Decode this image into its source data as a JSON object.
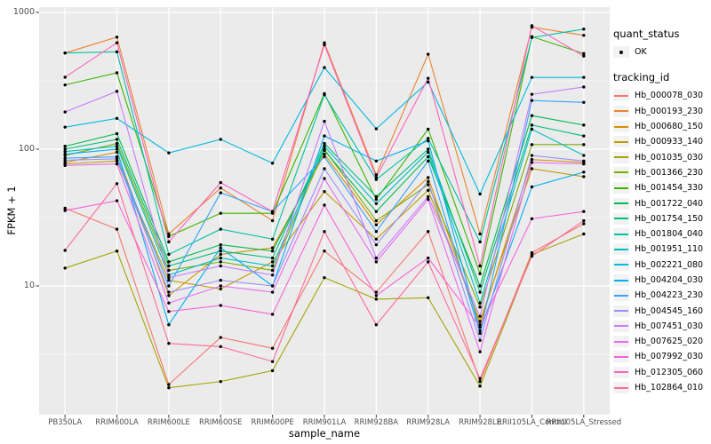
{
  "figure": {
    "y_axis_title": "FPKM + 1",
    "x_axis_title": "sample_name",
    "legend": {
      "quant_title": "quant_status",
      "quant_items": [
        {
          "label": "OK",
          "symbol": "point",
          "color": "#000000"
        }
      ],
      "tracking_title": "tracking_id"
    },
    "colors": {
      "panel_bg": "#EBEBEB",
      "grid_major": "#FFFFFF",
      "grid_minor": "#FFFFFF",
      "axis_text": "#4D4D4D",
      "tick_mark": "#333333",
      "point": "#000000",
      "legend_key_bg": "#F2F2F2"
    }
  },
  "chart_data": {
    "type": "line",
    "title": "",
    "xlabel": "sample_name",
    "ylabel": "FPKM + 1",
    "y_scale": "log10",
    "ylim": [
      1.1,
      1100
    ],
    "y_major_ticks": [
      1000,
      100,
      10
    ],
    "y_major_tick_labels": [
      "1000",
      "100",
      "10"
    ],
    "y_minor_ticks": [
      316.2,
      31.62,
      3.162
    ],
    "grid": true,
    "legend_position": "right",
    "point_symbol": "filled-circle",
    "point_color": "#000000",
    "quant_status": "OK",
    "categories": [
      "PB350LA",
      "RRIM600LA",
      "RRIM600LE",
      "RRIM600SE",
      "RRIM600PE",
      "RRIM901LA",
      "RRIM928BA",
      "RRIM928LA",
      "RRIM928LE",
      "RRII105LA_Control",
      "RRII105LA_Stressed"
    ],
    "series": [
      {
        "name": "Hb_000078_030",
        "color": "#F8766D",
        "values": [
          37,
          26,
          1.9,
          4.2,
          3.5,
          18,
          9,
          25,
          2.0,
          17.5,
          28.5
        ]
      },
      {
        "name": "Hb_000193_230",
        "color": "#EA8331",
        "values": [
          505,
          660,
          24,
          52,
          30,
          600,
          65,
          495,
          24,
          780,
          680
        ]
      },
      {
        "name": "Hb_000680_150",
        "color": "#D89000",
        "values": [
          80,
          95,
          8.5,
          17,
          19,
          92,
          28,
          62,
          5.2,
          84,
          80
        ]
      },
      {
        "name": "Hb_000933_140",
        "color": "#C09B00",
        "values": [
          78,
          82,
          11,
          9.5,
          15,
          49,
          22,
          50,
          5.5,
          72,
          63
        ]
      },
      {
        "name": "Hb_001035_030",
        "color": "#A3A500",
        "values": [
          13.5,
          18,
          1.8,
          2.0,
          2.4,
          11.5,
          8,
          8.2,
          1.85,
          17,
          24
        ]
      },
      {
        "name": "Hb_001366_230",
        "color": "#7CAE00",
        "values": [
          90,
          110,
          13,
          15,
          13,
          100,
          30,
          55,
          7,
          108,
          108
        ]
      },
      {
        "name": "Hb_001454_330",
        "color": "#39B600",
        "values": [
          295,
          362,
          23,
          34,
          34,
          255,
          43,
          140,
          12.3,
          665,
          500
        ]
      },
      {
        "name": "Hb_001722_040",
        "color": "#00BB4E",
        "values": [
          105,
          130,
          15,
          20,
          18,
          98,
          35,
          88,
          10,
          176,
          150
        ]
      },
      {
        "name": "Hb_001754_150",
        "color": "#00BF7D",
        "values": [
          100,
          118,
          14,
          18,
          16,
          110,
          45,
          100,
          9,
          150,
          125
        ]
      },
      {
        "name": "Hb_001804_040",
        "color": "#00C1A3",
        "values": [
          505,
          515,
          17,
          26,
          22,
          250,
          60,
          120,
          21,
          655,
          755
        ]
      },
      {
        "name": "Hb_001951_110",
        "color": "#00BFC4",
        "values": [
          96,
          105,
          12,
          16,
          14,
          105,
          40,
          95,
          7.5,
          140,
          90
        ]
      },
      {
        "name": "Hb_002221_080",
        "color": "#00BAE0",
        "values": [
          145,
          168,
          94,
          118,
          79,
          395,
          141,
          310,
          47,
          335,
          335
        ]
      },
      {
        "name": "Hb_004204_030",
        "color": "#00B0F6",
        "values": [
          92,
          100,
          5.2,
          19,
          10,
          125,
          82,
          115,
          4.7,
          53,
          68
        ]
      },
      {
        "name": "Hb_004223_230",
        "color": "#35A2FF",
        "values": [
          86,
          88,
          10,
          48,
          35,
          88,
          25,
          82,
          4.5,
          227,
          220
        ]
      },
      {
        "name": "Hb_004545_160",
        "color": "#9590FF",
        "values": [
          83,
          85,
          9,
          11,
          10,
          72,
          20,
          58,
          4,
          90,
          82
        ]
      },
      {
        "name": "Hb_007451_030",
        "color": "#C77CFF",
        "values": [
          187,
          265,
          11.5,
          14,
          12,
          160,
          16,
          45,
          6,
          252,
          285
        ]
      },
      {
        "name": "Hb_007625_020",
        "color": "#E76BF3",
        "values": [
          76,
          78,
          7.5,
          10,
          9,
          61,
          15,
          43,
          3.3,
          80,
          78
        ]
      },
      {
        "name": "Hb_007992_030",
        "color": "#FA62DB",
        "values": [
          35.6,
          42,
          6.5,
          7.2,
          6.2,
          39,
          8.5,
          16,
          5,
          31,
          35
        ]
      },
      {
        "name": "Hb_012305_060",
        "color": "#FF62BC",
        "values": [
          336,
          600,
          21,
          57,
          35,
          580,
          62,
          330,
          14,
          800,
          480
        ]
      },
      {
        "name": "Hb_102864_010",
        "color": "#FF6A98",
        "values": [
          18.2,
          56,
          3.8,
          3.6,
          2.8,
          25,
          5.2,
          15,
          2.1,
          16.5,
          30
        ]
      }
    ]
  }
}
